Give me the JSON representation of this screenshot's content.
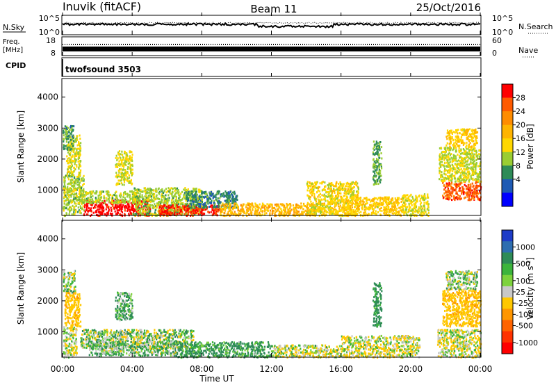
{
  "header": {
    "station": "Inuvik (fitACF)",
    "beam": "Beam 11",
    "date": "25/Oct/2016"
  },
  "noise_panel": {
    "left_label": "N.Sky",
    "right_label": "N.Search",
    "left_ticks": [
      "10^5",
      "10^0"
    ],
    "right_ticks": [
      "10^5",
      "10^0"
    ]
  },
  "freq_panel": {
    "left_label_line1": "Freq.",
    "left_label_line2": "[MHz]",
    "left_ticks": [
      "18",
      "8"
    ],
    "right_label": "Nave",
    "right_ticks": [
      "60",
      "0"
    ]
  },
  "cpid_panel": {
    "label": "CPID",
    "value": "twofsound 3503"
  },
  "x_axis": {
    "label": "Time UT",
    "ticks": [
      "00:00",
      "04:00",
      "08:00",
      "12:00",
      "16:00",
      "20:00",
      "00:00"
    ]
  },
  "power_colorbar": {
    "label": "Power [dB]",
    "ticks": [
      "28",
      "24",
      "20",
      "16",
      "12",
      "8",
      "4"
    ],
    "colors": [
      "#ff0000",
      "#ff5a00",
      "#ff8c00",
      "#ffb400",
      "#ffd700",
      "#9acd32",
      "#2e8b57",
      "#1e5ab4",
      "#0000ff"
    ]
  },
  "velocity_colorbar": {
    "label_main": "Velocity [m s",
    "label_exp": "-1",
    "label_end": "]",
    "ticks": [
      "1000",
      "500",
      "100",
      "25",
      "-25",
      "-100",
      "-500",
      "-1000"
    ],
    "colors": [
      "#1e3cc8",
      "#2e6eb0",
      "#2e8b57",
      "#3cb43c",
      "#7dd23c",
      "#c8c8c8",
      "#ffc800",
      "#ff9600",
      "#ff6400",
      "#ff3200",
      "#ff0000"
    ]
  },
  "chart_data": [
    {
      "type": "heatmap",
      "title": "Power",
      "ylabel": "Slant Range [km]",
      "xlabel": "Time UT",
      "x_range_hours": [
        0,
        24
      ],
      "ylim": [
        180,
        4600
      ],
      "yticks": [
        1000,
        2000,
        3000,
        4000
      ],
      "colorbar": "Power [dB]",
      "color_range": [
        0,
        30
      ],
      "regions": [
        {
          "t0": 0.0,
          "t1": 1.2,
          "r0": 200,
          "r1": 1500,
          "level": 12
        },
        {
          "t0": 0.2,
          "t1": 1.0,
          "r0": 1500,
          "r1": 2800,
          "level": 14
        },
        {
          "t0": 0.0,
          "t1": 0.6,
          "r0": 2300,
          "r1": 3100,
          "level": 9
        },
        {
          "t0": 1.2,
          "t1": 5.0,
          "r0": 200,
          "r1": 700,
          "level": 29
        },
        {
          "t0": 1.0,
          "t1": 4.2,
          "r0": 600,
          "r1": 1000,
          "level": 12
        },
        {
          "t0": 3.0,
          "t1": 4.0,
          "r0": 1200,
          "r1": 2300,
          "level": 14
        },
        {
          "t0": 4.0,
          "t1": 8.0,
          "r0": 200,
          "r1": 1100,
          "level": 12
        },
        {
          "t0": 5.5,
          "t1": 9.0,
          "r0": 200,
          "r1": 550,
          "level": 27
        },
        {
          "t0": 7.0,
          "t1": 10.0,
          "r0": 450,
          "r1": 1000,
          "level": 8
        },
        {
          "t0": 9.0,
          "t1": 15.0,
          "r0": 200,
          "r1": 600,
          "level": 18
        },
        {
          "t0": 14.0,
          "t1": 17.0,
          "r0": 200,
          "r1": 1300,
          "level": 15
        },
        {
          "t0": 16.0,
          "t1": 19.5,
          "r0": 200,
          "r1": 800,
          "level": 16
        },
        {
          "t0": 17.8,
          "t1": 18.3,
          "r0": 1200,
          "r1": 2600,
          "level": 10
        },
        {
          "t0": 19.5,
          "t1": 21.0,
          "r0": 200,
          "r1": 900,
          "level": 14
        },
        {
          "t0": 21.8,
          "t1": 24.0,
          "r0": 700,
          "r1": 1300,
          "level": 25
        },
        {
          "t0": 21.6,
          "t1": 24.0,
          "r0": 1300,
          "r1": 2400,
          "level": 13
        },
        {
          "t0": 22.0,
          "t1": 23.8,
          "r0": 2400,
          "r1": 3000,
          "level": 16
        }
      ]
    },
    {
      "type": "heatmap",
      "title": "Velocity",
      "ylabel": "Slant Range [km]",
      "xlabel": "Time UT",
      "x_range_hours": [
        0,
        24
      ],
      "ylim": [
        180,
        4600
      ],
      "yticks": [
        1000,
        2000,
        3000,
        4000
      ],
      "colorbar": "Velocity [m s-1]",
      "color_range": [
        -1000,
        1000
      ],
      "regions": [
        {
          "t0": 0.0,
          "t1": 0.7,
          "r0": 2300,
          "r1": 3000,
          "level": 0
        },
        {
          "t0": 0.1,
          "t1": 1.0,
          "r0": 1200,
          "r1": 2300,
          "level": -350
        },
        {
          "t0": 0.0,
          "t1": 0.8,
          "r0": 200,
          "r1": 1200,
          "level": -80
        },
        {
          "t0": 1.0,
          "t1": 7.5,
          "r0": 500,
          "r1": 1100,
          "level": 0
        },
        {
          "t0": 1.5,
          "t1": 6.5,
          "r0": 250,
          "r1": 700,
          "level": 50
        },
        {
          "t0": 3.0,
          "t1": 4.0,
          "r0": 1400,
          "r1": 2300,
          "level": 80
        },
        {
          "t0": 6.5,
          "t1": 12.0,
          "r0": 200,
          "r1": 700,
          "level": 150
        },
        {
          "t0": 12.0,
          "t1": 16.0,
          "r0": 200,
          "r1": 600,
          "level": -60
        },
        {
          "t0": 16.0,
          "t1": 20.5,
          "r0": 200,
          "r1": 900,
          "level": -80
        },
        {
          "t0": 17.8,
          "t1": 18.3,
          "r0": 1200,
          "r1": 2600,
          "level": 200
        },
        {
          "t0": 21.8,
          "t1": 24.0,
          "r0": 1200,
          "r1": 2400,
          "level": -400
        },
        {
          "t0": 22.0,
          "t1": 23.8,
          "r0": 2400,
          "r1": 3000,
          "level": 0
        },
        {
          "t0": 21.5,
          "t1": 24.0,
          "r0": 200,
          "r1": 1100,
          "level": -80
        }
      ]
    }
  ]
}
